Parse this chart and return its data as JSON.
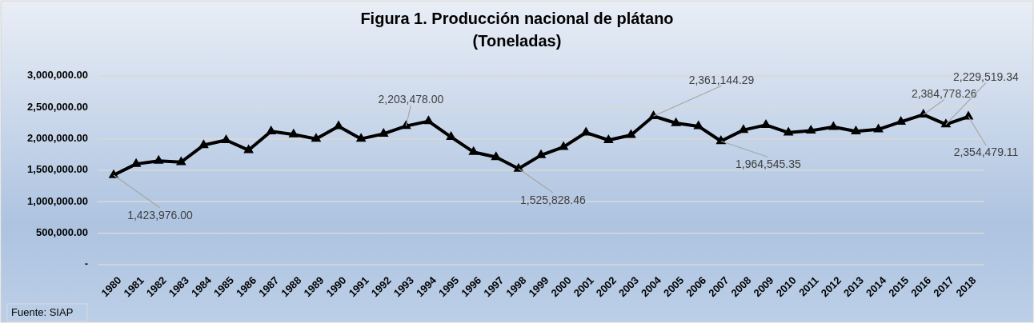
{
  "chart_data": {
    "type": "line",
    "title": "Figura 1. Producción nacional de plátano",
    "subtitle": "(Toneladas)",
    "annotations": [
      "Fuente: SIAP"
    ],
    "categories": [
      "1980",
      "1981",
      "1982",
      "1983",
      "1984",
      "1985",
      "1986",
      "1987",
      "1988",
      "1989",
      "1990",
      "1991",
      "1992",
      "1993",
      "1994",
      "1995",
      "1996",
      "1997",
      "1998",
      "1999",
      "2000",
      "2001",
      "2002",
      "2003",
      "2004",
      "2005",
      "2006",
      "2007",
      "2008",
      "2009",
      "2010",
      "2011",
      "2012",
      "2013",
      "2014",
      "2015",
      "2016",
      "2017",
      "2018"
    ],
    "series": [
      {
        "color": "#000000",
        "values": [
          1423976.0,
          1600000,
          1650000,
          1630000,
          1900000,
          1980000,
          1820000,
          2120000,
          2070000,
          2000000,
          2200000,
          2000000,
          2080000,
          2203478.0,
          2280000,
          2030000,
          1790000,
          1710000,
          1525828.46,
          1740000,
          1870000,
          2100000,
          1980000,
          2060000,
          2361144.29,
          2250000,
          2200000,
          1964545.35,
          2140000,
          2220000,
          2100000,
          2130000,
          2190000,
          2120000,
          2150000,
          2270000,
          2384778.26,
          2229519.34,
          2354479.11
        ],
        "value_labels": [
          "1,423,976.00",
          null,
          null,
          null,
          null,
          null,
          null,
          null,
          null,
          null,
          null,
          null,
          null,
          "2,203,478.00",
          null,
          null,
          null,
          null,
          "1,525,828.46",
          null,
          null,
          null,
          null,
          null,
          "2,361,144.29",
          null,
          null,
          "1,964,545.35",
          null,
          null,
          null,
          null,
          null,
          null,
          null,
          null,
          "2,384,778.26",
          "2,229,519.34",
          "2,354,479.11"
        ]
      }
    ],
    "ylim": [
      0,
      3000000
    ],
    "yticks": [
      {
        "value": 0,
        "label": "-"
      },
      {
        "value": 500000,
        "label": "500,000.00"
      },
      {
        "value": 1000000,
        "label": "1,000,000.00"
      },
      {
        "value": 1500000,
        "label": "1,500,000.00"
      },
      {
        "value": 2000000,
        "label": "2,000,000.00"
      },
      {
        "value": 2500000,
        "label": "2,500,000.00"
      },
      {
        "value": 3000000,
        "label": "3,000,000.00"
      }
    ],
    "grid": "y",
    "marker": "triangle",
    "line_style": "solid"
  }
}
